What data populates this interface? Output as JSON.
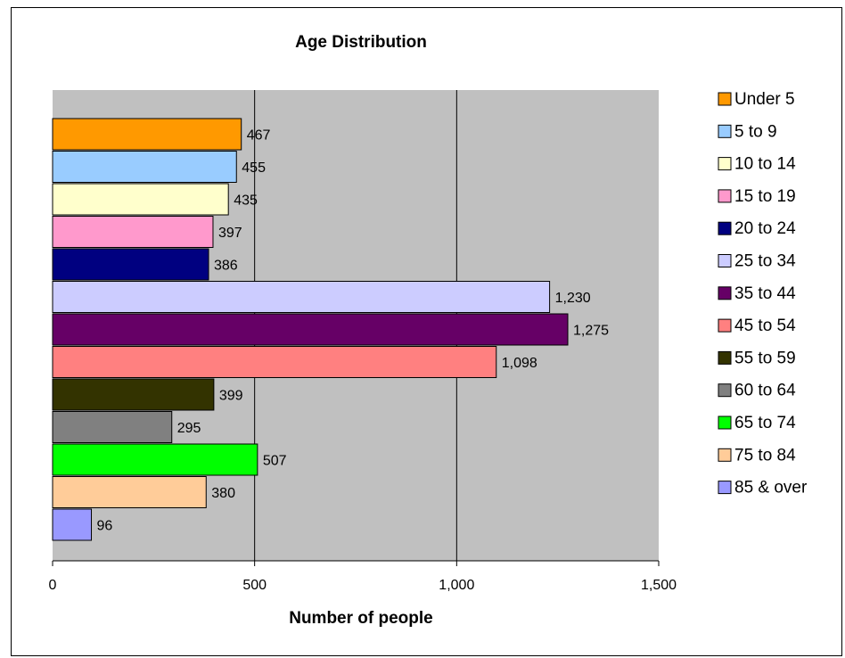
{
  "chart_data": {
    "type": "bar",
    "orientation": "horizontal",
    "title": "Age Distribution",
    "xlabel": "Number of people",
    "ylabel": "",
    "xlim": [
      0,
      1500
    ],
    "x_ticks": [
      0,
      500,
      1000,
      1500
    ],
    "x_tick_labels": [
      "0",
      "500",
      "1,000",
      "1,500"
    ],
    "grid": "vertical major gridlines",
    "plot_background": "#C0C0C0",
    "legend_position": "right",
    "series": [
      {
        "name": "Under 5",
        "value": 467,
        "label": "467",
        "color": "#FF9900"
      },
      {
        "name": "5 to 9",
        "value": 455,
        "label": "455",
        "color": "#99CCFF"
      },
      {
        "name": "10 to 14",
        "value": 435,
        "label": "435",
        "color": "#FFFFCC"
      },
      {
        "name": "15 to 19",
        "value": 397,
        "label": "397",
        "color": "#FF99CC"
      },
      {
        "name": "20 to 24",
        "value": 386,
        "label": "386",
        "color": "#000080"
      },
      {
        "name": "25 to 34",
        "value": 1230,
        "label": "1,230",
        "color": "#CCCCFF"
      },
      {
        "name": "35 to 44",
        "value": 1275,
        "label": "1,275",
        "color": "#660066"
      },
      {
        "name": "45 to 54",
        "value": 1098,
        "label": "1,098",
        "color": "#FF8080"
      },
      {
        "name": "55 to 59",
        "value": 399,
        "label": "399",
        "color": "#333300"
      },
      {
        "name": "60 to 64",
        "value": 295,
        "label": "295",
        "color": "#808080"
      },
      {
        "name": "65 to 74",
        "value": 507,
        "label": "507",
        "color": "#00FF00"
      },
      {
        "name": "75 to 84",
        "value": 380,
        "label": "380",
        "color": "#FFCC99"
      },
      {
        "name": "85 & over",
        "value": 96,
        "label": "96",
        "color": "#9999FF"
      }
    ]
  }
}
